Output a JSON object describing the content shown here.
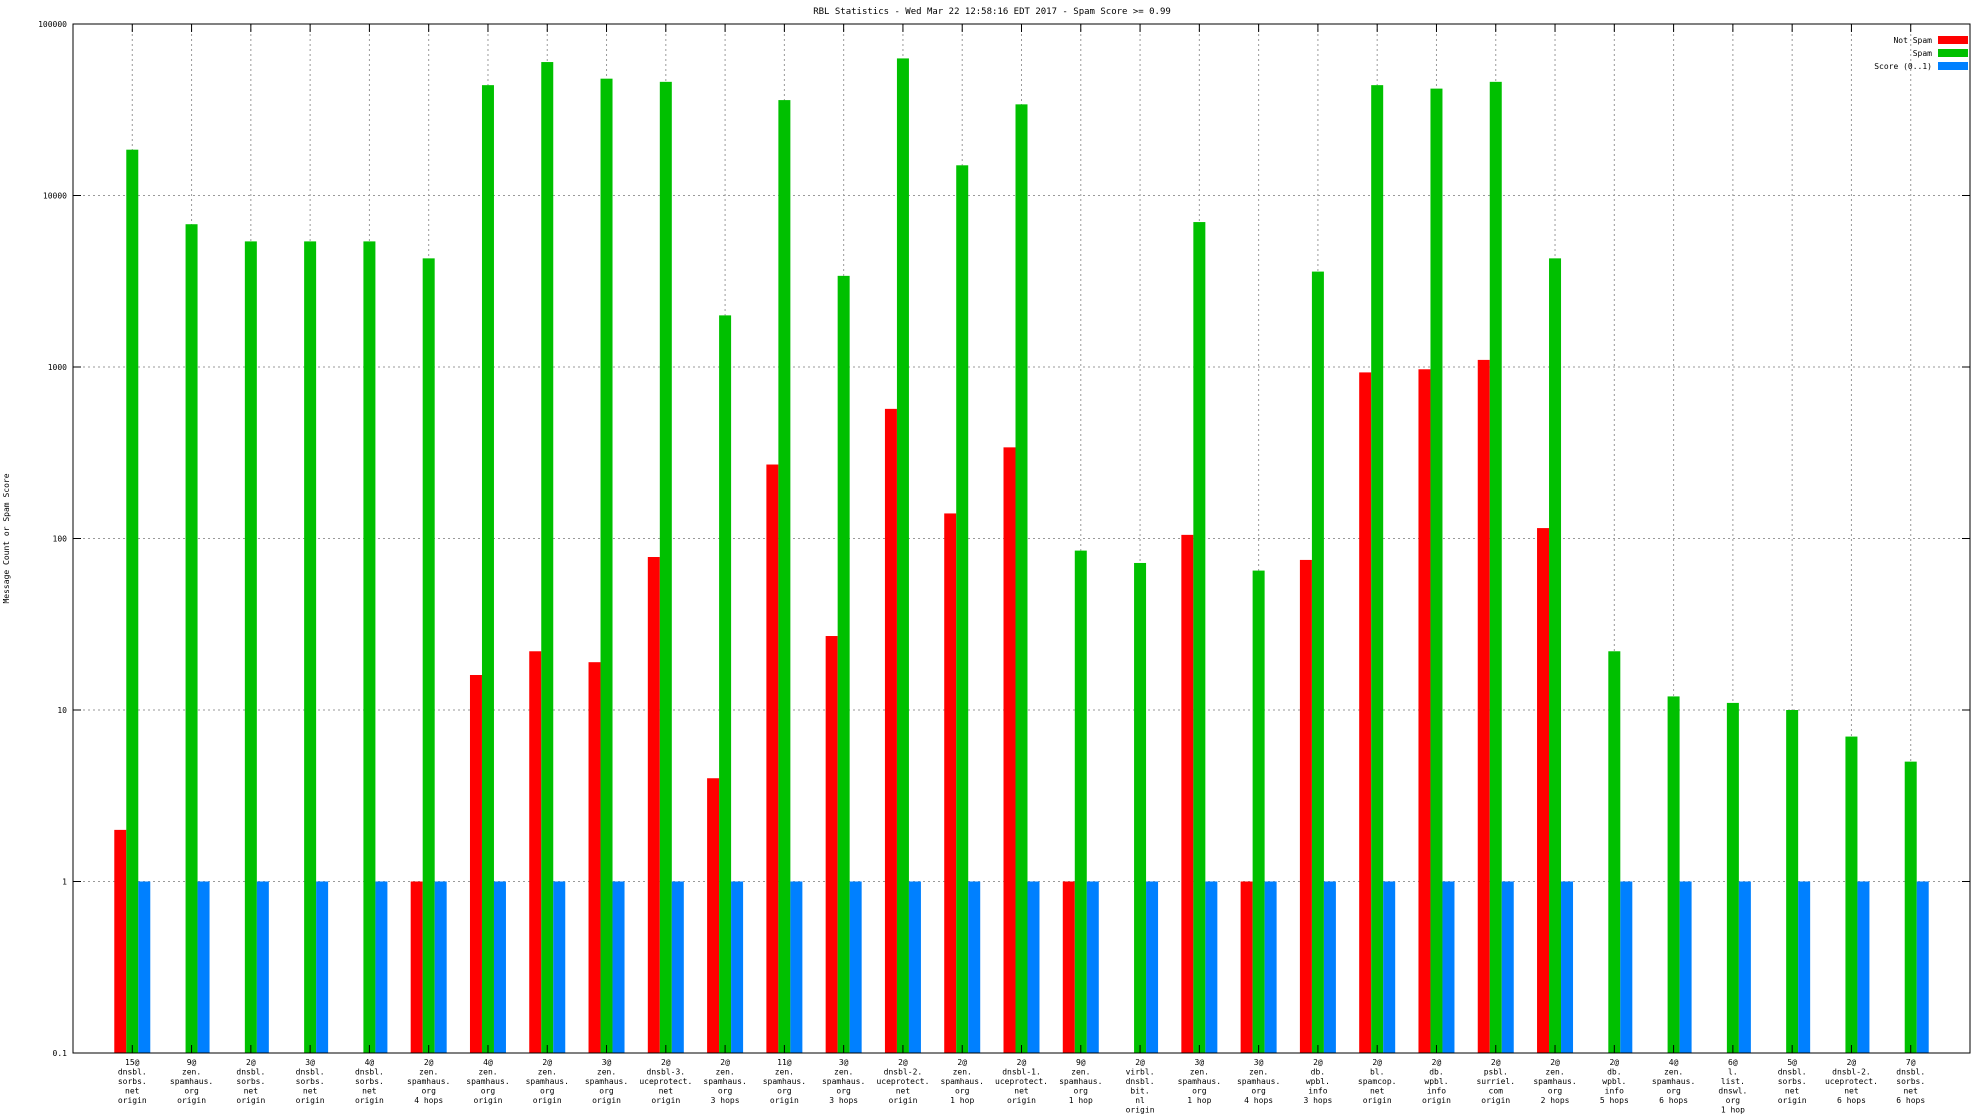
{
  "chart_data": {
    "type": "bar",
    "title": "RBL Statistics - Wed Mar 22 12:58:16 EDT 2017 - Spam Score >= 0.99",
    "ylabel": "Message Count or Spam Score",
    "xlabel": "",
    "yscale": "log",
    "ylim": [
      0.1,
      100000
    ],
    "yticks": [
      "0.1",
      "1",
      "10",
      "100",
      "1000",
      "10000",
      "100000"
    ],
    "grid": true,
    "legend_position": "top-right",
    "categories": [
      [
        "15@",
        "dnsbl.",
        "sorbs.",
        "net",
        "origin"
      ],
      [
        "9@",
        "zen.",
        "spamhaus.",
        "org",
        "origin"
      ],
      [
        "2@",
        "dnsbl.",
        "sorbs.",
        "net",
        "origin"
      ],
      [
        "3@",
        "dnsbl.",
        "sorbs.",
        "net",
        "origin"
      ],
      [
        "4@",
        "dnsbl.",
        "sorbs.",
        "net",
        "origin"
      ],
      [
        "2@",
        "zen.",
        "spamhaus.",
        "org",
        "4 hops"
      ],
      [
        "4@",
        "zen.",
        "spamhaus.",
        "org",
        "origin"
      ],
      [
        "2@",
        "zen.",
        "spamhaus.",
        "org",
        "origin"
      ],
      [
        "3@",
        "zen.",
        "spamhaus.",
        "org",
        "origin"
      ],
      [
        "2@",
        "dnsbl-3.",
        "uceprotect.",
        "net",
        "origin"
      ],
      [
        "2@",
        "zen.",
        "spamhaus.",
        "org",
        "3 hops"
      ],
      [
        "11@",
        "zen.",
        "spamhaus.",
        "org",
        "origin"
      ],
      [
        "3@",
        "zen.",
        "spamhaus.",
        "org",
        "3 hops"
      ],
      [
        "2@",
        "dnsbl-2.",
        "uceprotect.",
        "net",
        "origin"
      ],
      [
        "2@",
        "zen.",
        "spamhaus.",
        "org",
        "1 hop"
      ],
      [
        "2@",
        "dnsbl-1.",
        "uceprotect.",
        "net",
        "origin"
      ],
      [
        "9@",
        "zen.",
        "spamhaus.",
        "org",
        "1 hop"
      ],
      [
        "2@",
        "virbl.",
        "dnsbl.",
        "bit.",
        "nl",
        "origin"
      ],
      [
        "3@",
        "zen.",
        "spamhaus.",
        "org",
        "1 hop"
      ],
      [
        "3@",
        "zen.",
        "spamhaus.",
        "org",
        "4 hops"
      ],
      [
        "2@",
        "db.",
        "wpbl.",
        "info",
        "3 hops"
      ],
      [
        "2@",
        "bl.",
        "spamcop.",
        "net",
        "origin"
      ],
      [
        "2@",
        "db.",
        "wpbl.",
        "info",
        "origin"
      ],
      [
        "2@",
        "psbl.",
        "surriel.",
        "com",
        "origin"
      ],
      [
        "2@",
        "zen.",
        "spamhaus.",
        "org",
        "2 hops"
      ],
      [
        "2@",
        "db.",
        "wpbl.",
        "info",
        "5 hops"
      ],
      [
        "4@",
        "zen.",
        "spamhaus.",
        "org",
        "6 hops"
      ],
      [
        "6@",
        "l.",
        "list.",
        "dnswl.",
        "org",
        "1 hop"
      ],
      [
        "5@",
        "dnsbl.",
        "sorbs.",
        "net",
        "origin"
      ],
      [
        "2@",
        "dnsbl-2.",
        "uceprotect.",
        "net",
        "6 hops"
      ],
      [
        "7@",
        "dnsbl.",
        "sorbs.",
        "net",
        "6 hops"
      ]
    ],
    "series": [
      {
        "name": "Not Spam",
        "color": "#ff0000",
        "values": [
          2,
          0,
          0,
          0,
          0,
          1,
          16,
          22,
          19,
          78,
          4,
          270,
          27,
          570,
          140,
          340,
          1,
          0,
          105,
          1,
          75,
          930,
          970,
          1100,
          115,
          0,
          0,
          0,
          0,
          0,
          0
        ]
      },
      {
        "name": "Spam",
        "color": "#00c000",
        "values": [
          18500,
          6800,
          5400,
          5400,
          5400,
          4300,
          44000,
          60000,
          48000,
          46000,
          2000,
          36000,
          3400,
          63000,
          15000,
          34000,
          85,
          72,
          7000,
          65,
          3600,
          44000,
          42000,
          46000,
          4300,
          22,
          12,
          11,
          10,
          7,
          5
        ]
      },
      {
        "name": "Score (0..1)",
        "color": "#0080ff",
        "values": [
          1,
          1,
          1,
          1,
          1,
          1,
          1,
          1,
          1,
          1,
          1,
          1,
          1,
          1,
          1,
          1,
          1,
          1,
          1,
          1,
          1,
          1,
          1,
          1,
          1,
          1,
          1,
          1,
          1,
          1,
          1
        ]
      }
    ]
  }
}
